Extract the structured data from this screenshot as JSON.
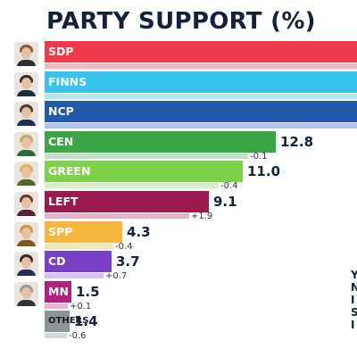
{
  "title": "PARTY SUPPORT (%)",
  "side_letters": [
    "Y",
    "N",
    "I",
    "S",
    "I"
  ],
  "chart_data": {
    "type": "bar",
    "title": "PARTY SUPPORT (%)",
    "categories": [
      "SDP",
      "FINNS",
      "NCP",
      "CEN",
      "GREEN",
      "LEFT",
      "SPP",
      "CD",
      "MN",
      "OTHERS"
    ],
    "values": [
      null,
      null,
      null,
      12.8,
      11.0,
      9.1,
      4.3,
      3.7,
      1.5,
      1.4
    ],
    "value_labels": [
      "",
      "",
      "",
      "12.8",
      "11.0",
      "9.1",
      "4.3",
      "3.7",
      "1.5",
      "1.4"
    ],
    "change_labels": [
      "",
      "",
      "",
      "-0.1",
      "-0.4",
      "+1.9",
      "-0.4",
      "+0.7",
      "+0.1",
      "-0.6"
    ],
    "colors": [
      "#ef3b49",
      "#37c3ee",
      "#1f5aab",
      "#3aa644",
      "#7ed249",
      "#9b1a4d",
      "#f4b63c",
      "#7a3fc9",
      "#b2207d",
      "#8c9497"
    ],
    "change_colors": [
      "#f7b9bd",
      "#b4e6f7",
      "#b0c4e4",
      "#bfe3c2",
      "#d9f1c7",
      "#e6b3c8",
      "#fbe3b1",
      "#d6c3ef",
      "#e8b5d5",
      "#d6d9da"
    ],
    "scale_max": 15.4,
    "legend": "none",
    "grid": false
  }
}
